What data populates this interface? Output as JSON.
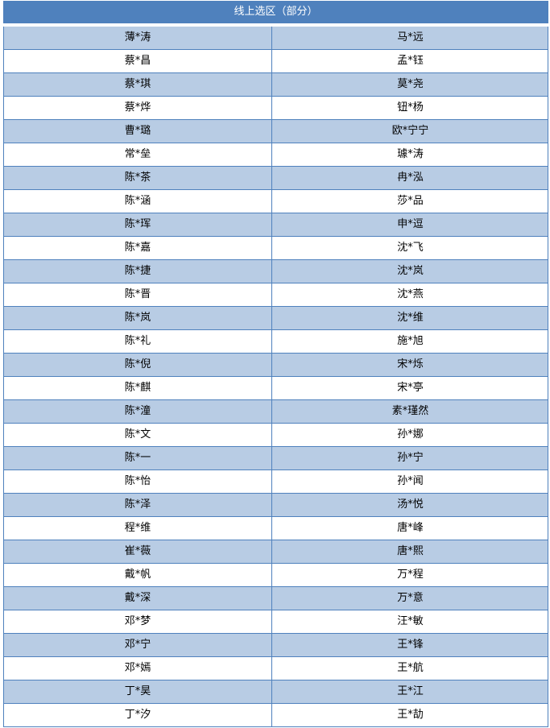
{
  "title": "线上选区（部分）",
  "colors": {
    "header": "#4f81bd",
    "band": "#b8cce4",
    "border": "#4f81bd"
  },
  "rows": [
    [
      "薄*涛",
      "马*远"
    ],
    [
      "蔡*昌",
      "孟*钰"
    ],
    [
      "蔡*琪",
      "莫*尧"
    ],
    [
      "蔡*烨",
      "钮*杨"
    ],
    [
      "曹*璐",
      "欧*宁宁"
    ],
    [
      "常*垒",
      "璩*涛"
    ],
    [
      "陈*茶",
      "冉*泓"
    ],
    [
      "陈*涵",
      "莎*品"
    ],
    [
      "陈*珲",
      "申*逗"
    ],
    [
      "陈*嘉",
      "沈*飞"
    ],
    [
      "陈*捷",
      "沈*岚"
    ],
    [
      "陈*晋",
      "沈*燕"
    ],
    [
      "陈*岚",
      "沈*维"
    ],
    [
      "陈*礼",
      "施*旭"
    ],
    [
      "陈*倪",
      "宋*烁"
    ],
    [
      "陈*麒",
      "宋*亭"
    ],
    [
      "陈*潼",
      "素*瑾然"
    ],
    [
      "陈*文",
      "孙*娜"
    ],
    [
      "陈*一",
      "孙*宁"
    ],
    [
      "陈*怡",
      "孙*闻"
    ],
    [
      "陈*泽",
      "汤*悦"
    ],
    [
      "程*维",
      "唐*峰"
    ],
    [
      "崔*薇",
      "唐*熙"
    ],
    [
      "戴*帆",
      "万*程"
    ],
    [
      "戴*深",
      "万*意"
    ],
    [
      "邓*梦",
      "汪*敏"
    ],
    [
      "邓*宁",
      "王*锋"
    ],
    [
      "邓*嫣",
      "王*航"
    ],
    [
      "丁*昊",
      "王*江"
    ],
    [
      "丁*汐",
      "王*劼"
    ]
  ]
}
